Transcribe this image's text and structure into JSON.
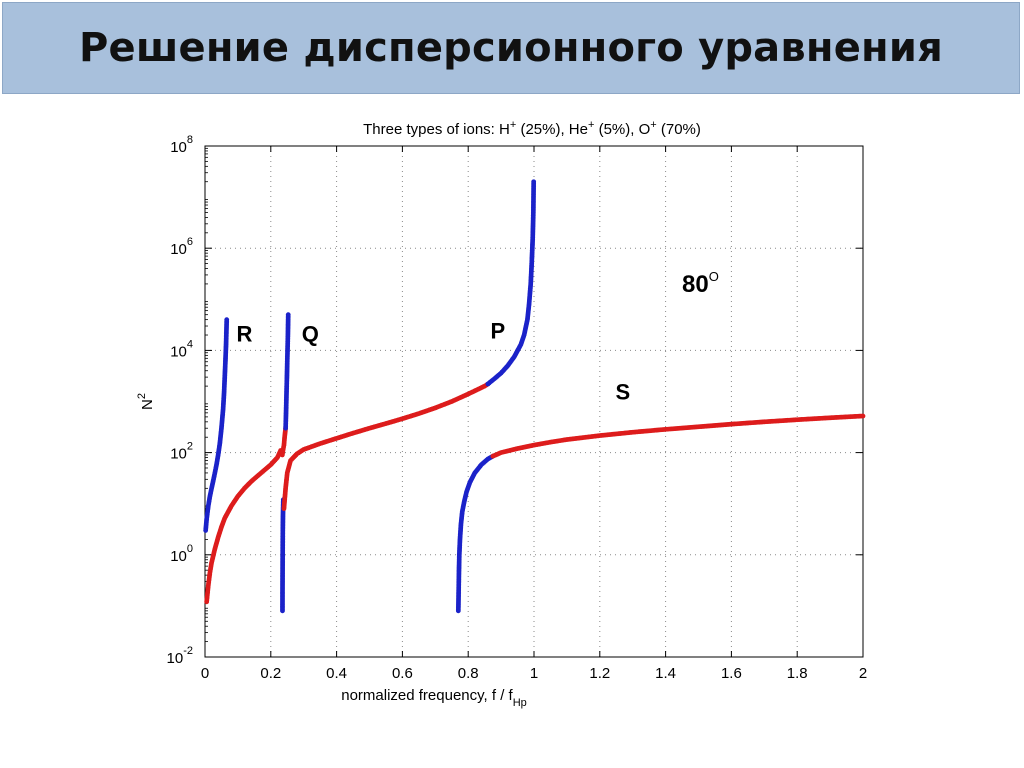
{
  "slide": {
    "title": "Решение дисперсионного уравнения"
  },
  "chart_data": {
    "type": "scatter",
    "title": "Three types of ions: H+ (25%), He+ (5%), O+ (70%)",
    "title_parts": {
      "prefix": "Three types of ions: ",
      "ion1": "H",
      "ion1_pct": " (25%), ",
      "ion2": "He",
      "ion2_pct": "  (5%), ",
      "ion3": "O",
      "ion3_pct": " (70%)",
      "sup": "+"
    },
    "xlabel": "normalized frequency,  f / f",
    "xlabel_sub": "Hp",
    "ylabel": "N",
    "ylabel_sup": "2",
    "xlim": [
      0,
      2
    ],
    "ylim": [
      0.01,
      100000000
    ],
    "yscale": "log",
    "grid": true,
    "x_ticks": [
      "0",
      "0.2",
      "0.4",
      "0.6",
      "0.8",
      "1",
      "1.2",
      "1.4",
      "1.6",
      "1.8",
      "2"
    ],
    "y_ticks": [
      {
        "base": "10",
        "exp": "-2"
      },
      {
        "base": "10",
        "exp": "0"
      },
      {
        "base": "10",
        "exp": "2"
      },
      {
        "base": "10",
        "exp": "4"
      },
      {
        "base": "10",
        "exp": "6"
      },
      {
        "base": "10",
        "exp": "8"
      }
    ],
    "annotations": [
      {
        "text": "R",
        "x": 0.12,
        "y": 15000
      },
      {
        "text": "Q",
        "x": 0.32,
        "y": 15000
      },
      {
        "text": "P",
        "x": 0.89,
        "y": 17000
      },
      {
        "text": "S",
        "x": 1.27,
        "y": 1100
      }
    ],
    "angle_label": {
      "text": "80",
      "sup": "O",
      "x": 1.45,
      "y": 140000
    },
    "colors": {
      "blue": "#1b22c9",
      "red": "#dd1c1c"
    },
    "series": [
      {
        "branch": "R-lower",
        "color": "red",
        "x": [
          0.005,
          0.01,
          0.015,
          0.02,
          0.03,
          0.04,
          0.05,
          0.06,
          0.08,
          0.1,
          0.12,
          0.14,
          0.16,
          0.18,
          0.2,
          0.22,
          0.23
        ],
        "y": [
          0.12,
          0.25,
          0.45,
          0.7,
          1.3,
          2.2,
          3.5,
          5.2,
          9,
          14,
          20,
          27,
          35,
          45,
          58,
          80,
          110
        ]
      },
      {
        "branch": "R-upper",
        "color": "blue",
        "x": [
          0.002,
          0.005,
          0.01,
          0.015,
          0.02,
          0.025,
          0.03,
          0.035,
          0.04,
          0.045,
          0.05,
          0.055,
          0.058,
          0.06,
          0.062,
          0.064,
          0.066
        ],
        "y": [
          3,
          5,
          9,
          14,
          20,
          28,
          40,
          58,
          90,
          150,
          300,
          700,
          1500,
          3000,
          6000,
          13000,
          40000
        ]
      },
      {
        "branch": "Q-lower",
        "color": "red",
        "x": [
          0.235,
          0.237,
          0.24,
          0.242,
          0.245
        ],
        "y": [
          90,
          110,
          140,
          200,
          300
        ]
      },
      {
        "branch": "Q-upper",
        "color": "blue",
        "x": [
          0.245,
          0.246,
          0.247,
          0.248,
          0.249,
          0.25,
          0.251,
          0.252,
          0.253
        ],
        "y": [
          300,
          500,
          900,
          1700,
          3000,
          6000,
          11000,
          20000,
          50000
        ]
      },
      {
        "branch": "Q-left",
        "color": "blue",
        "x": [
          0.238,
          0.237,
          0.2365,
          0.2362,
          0.236,
          0.2358,
          0.2356,
          0.2355
        ],
        "y": [
          12,
          6,
          3,
          1.5,
          0.8,
          0.4,
          0.2,
          0.08
        ]
      },
      {
        "branch": "Q-P-red",
        "color": "red",
        "x": [
          0.24,
          0.245,
          0.25,
          0.26,
          0.28,
          0.3,
          0.35,
          0.4,
          0.45,
          0.5,
          0.55,
          0.6,
          0.65,
          0.7,
          0.75,
          0.8,
          0.85,
          0.86
        ],
        "y": [
          8,
          20,
          40,
          70,
          95,
          115,
          150,
          190,
          240,
          300,
          370,
          460,
          580,
          750,
          1000,
          1400,
          2000,
          2200
        ]
      },
      {
        "branch": "P-upper",
        "color": "blue",
        "x": [
          0.86,
          0.88,
          0.9,
          0.92,
          0.94,
          0.96,
          0.97,
          0.98,
          0.985,
          0.99,
          0.993,
          0.996,
          0.998,
          0.999
        ],
        "y": [
          2200,
          2800,
          3600,
          5000,
          7500,
          13000,
          20000,
          40000,
          80000,
          200000,
          500000,
          1500000,
          5000000,
          20000000
        ]
      },
      {
        "branch": "S-lower",
        "color": "blue",
        "x": [
          0.77,
          0.771,
          0.772,
          0.773,
          0.775,
          0.778,
          0.782,
          0.788,
          0.795,
          0.805,
          0.82,
          0.84,
          0.86,
          0.875
        ],
        "y": [
          0.08,
          0.2,
          0.5,
          1,
          2,
          4,
          7,
          11,
          17,
          26,
          40,
          58,
          75,
          85
        ]
      },
      {
        "branch": "S-upper",
        "color": "red",
        "x": [
          0.875,
          0.9,
          0.95,
          1.0,
          1.05,
          1.1,
          1.2,
          1.3,
          1.4,
          1.5,
          1.6,
          1.7,
          1.8,
          1.9,
          2.0
        ],
        "y": [
          85,
          100,
          120,
          140,
          160,
          180,
          215,
          250,
          285,
          320,
          360,
          400,
          440,
          480,
          520
        ]
      }
    ]
  }
}
